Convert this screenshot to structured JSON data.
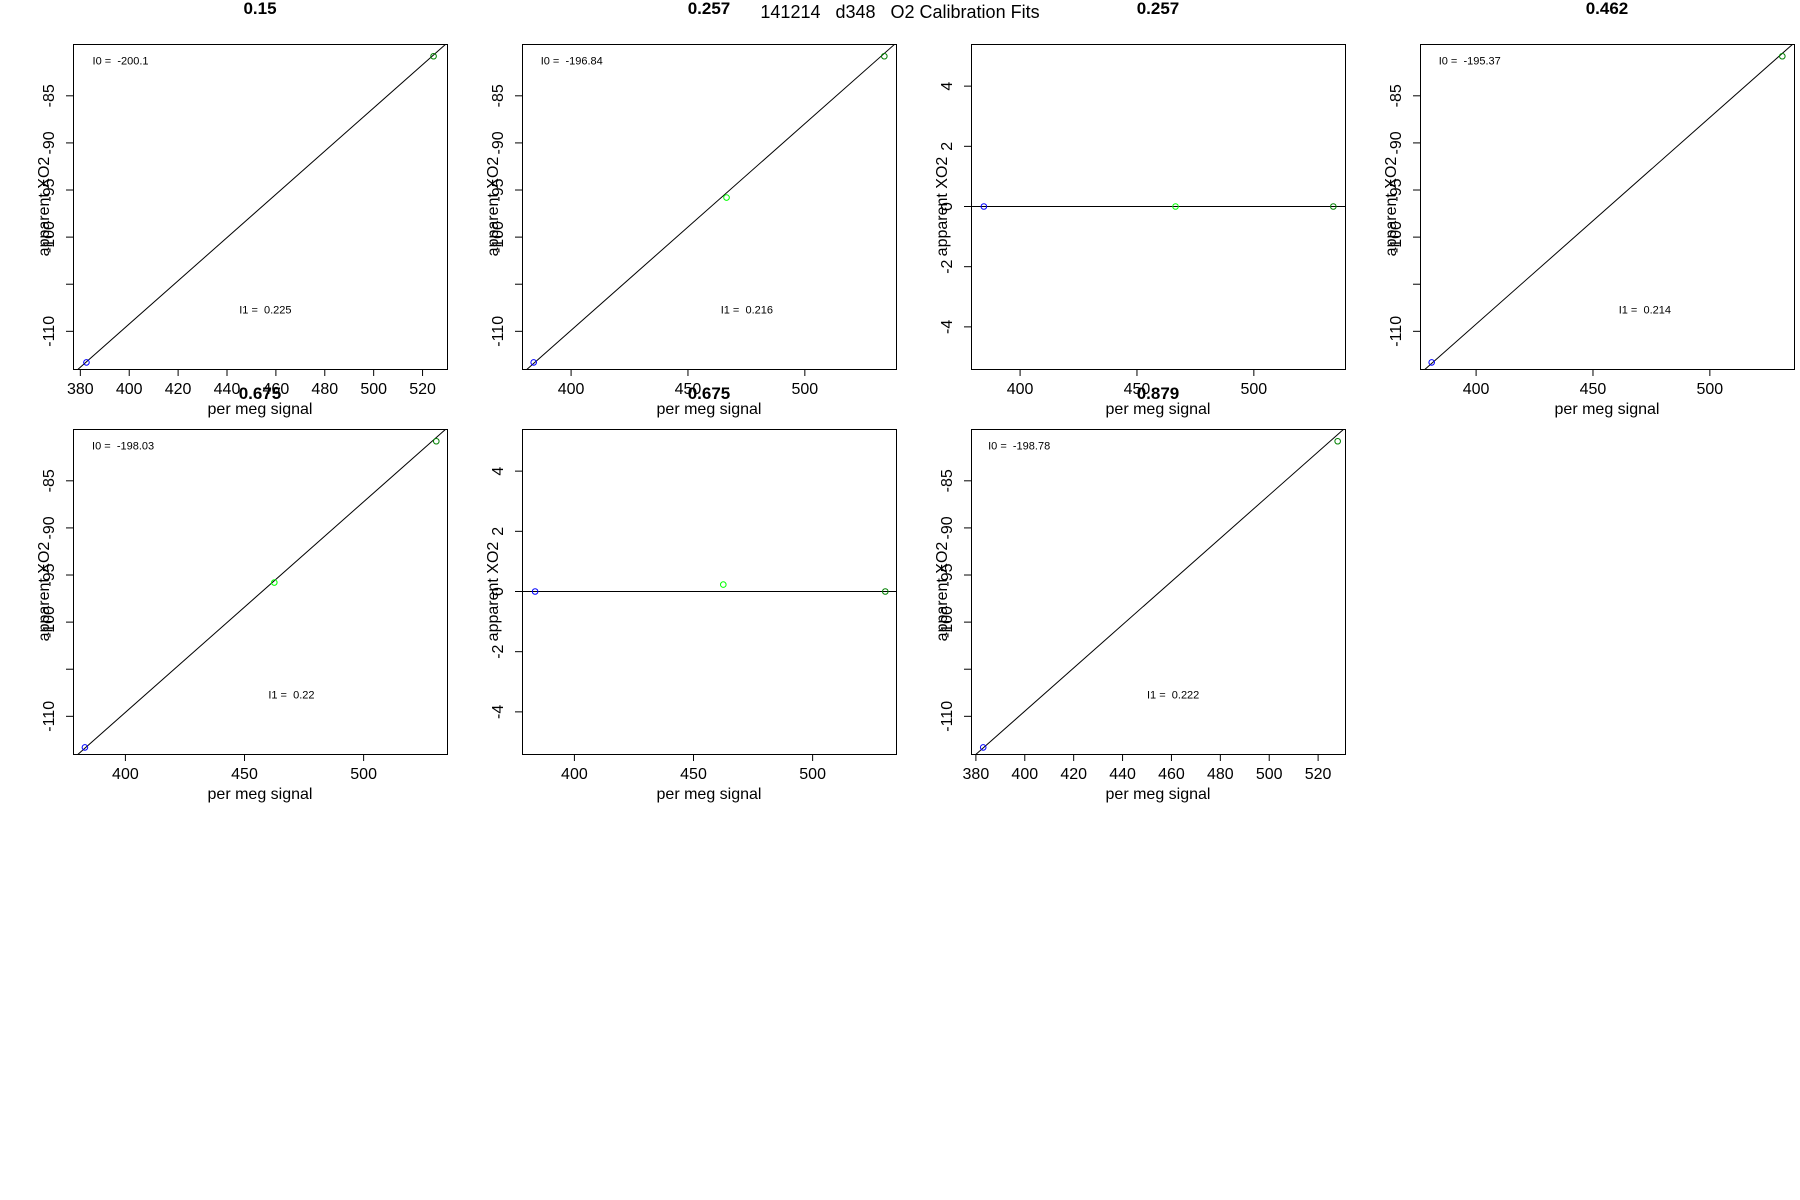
{
  "title": "141214   d348   O2 Calibration Fits",
  "colors": {
    "axis": "#000000",
    "low": "#0000ff",
    "mid": "#00ff00",
    "high": "#008000"
  },
  "chart_data": [
    {
      "type": "scatter",
      "title": "0.15",
      "xlabel": "per meg signal",
      "ylabel": "apparent XO2",
      "xlim": [
        377,
        530
      ],
      "ylim": [
        -114,
        -79.5
      ],
      "xticks": [
        380,
        400,
        420,
        440,
        460,
        480,
        500,
        520
      ],
      "yticks": [
        -85,
        -90,
        -95,
        -100,
        -105,
        -110
      ],
      "ytick_labels": [
        "-85",
        "-90",
        "-95",
        "-100",
        "",
        "-110"
      ],
      "points": [
        {
          "x": 382.5,
          "y": -113.3,
          "color": "low"
        },
        {
          "x": 524.5,
          "y": -80.8,
          "color": "high"
        }
      ],
      "fit": {
        "from": [
          377,
          -114.5
        ],
        "to": [
          530,
          -79.4
        ]
      },
      "annotations": [
        {
          "text": "I0 =  -200.1",
          "x": 385,
          "y": -81.7
        },
        {
          "text": "I1 =  0.225",
          "x": 445,
          "y": -108.1
        }
      ]
    },
    {
      "type": "scatter",
      "title": "0.257",
      "xlabel": "per meg signal",
      "ylabel": "apparent XO2",
      "xlim": [
        379,
        539
      ],
      "ylim": [
        -114,
        -79.5
      ],
      "xticks": [
        400,
        450,
        500
      ],
      "yticks": [
        -85,
        -90,
        -95,
        -100,
        -105,
        -110
      ],
      "ytick_labels": [
        "-85",
        "-90",
        "-95",
        "-100",
        "",
        "-110"
      ],
      "points": [
        {
          "x": 384,
          "y": -113.3,
          "color": "low"
        },
        {
          "x": 466.5,
          "y": -95.8,
          "color": "mid"
        },
        {
          "x": 534,
          "y": -80.8,
          "color": "high"
        }
      ],
      "fit": {
        "from": [
          379,
          -114.5
        ],
        "to": [
          539,
          -79.4
        ]
      },
      "annotations": [
        {
          "text": "I0 =  -196.84",
          "x": 387,
          "y": -81.7
        },
        {
          "text": "I1 =  0.216",
          "x": 464,
          "y": -108.1
        }
      ]
    },
    {
      "type": "scatter",
      "title": "0.257",
      "xlabel": "per meg signal",
      "ylabel": "apparent XO2",
      "xlim": [
        379,
        539
      ],
      "ylim": [
        -5.4,
        5.4
      ],
      "xticks": [
        400,
        450,
        500
      ],
      "yticks": [
        4,
        2,
        0,
        -2,
        -4
      ],
      "ytick_labels": [
        "4",
        "2",
        "0",
        "-2",
        "-4"
      ],
      "points": [
        {
          "x": 384.5,
          "y": 0,
          "color": "low"
        },
        {
          "x": 466.5,
          "y": 0,
          "color": "mid"
        },
        {
          "x": 534,
          "y": 0,
          "color": "high"
        }
      ],
      "fit": {
        "from": [
          379,
          0
        ],
        "to": [
          539,
          0
        ]
      },
      "annotations": []
    },
    {
      "type": "scatter",
      "title": "0.462",
      "xlabel": "per meg signal",
      "ylabel": "apparent XO2",
      "xlim": [
        376,
        536
      ],
      "ylim": [
        -114,
        -79.5
      ],
      "xticks": [
        400,
        450,
        500
      ],
      "yticks": [
        -85,
        -90,
        -95,
        -100,
        -105,
        -110
      ],
      "ytick_labels": [
        "-85",
        "-90",
        "-95",
        "-100",
        "",
        "-110"
      ],
      "points": [
        {
          "x": 381,
          "y": -113.3,
          "color": "low"
        },
        {
          "x": 531,
          "y": -80.8,
          "color": "high"
        }
      ],
      "fit": {
        "from": [
          376,
          -114.5
        ],
        "to": [
          536,
          -79.4
        ]
      },
      "annotations": [
        {
          "text": "I0 =  -195.37",
          "x": 384,
          "y": -81.7
        },
        {
          "text": "I1 =  0.214",
          "x": 461,
          "y": -108.1
        }
      ]
    },
    {
      "type": "scatter",
      "title": "0.675",
      "xlabel": "per meg signal",
      "ylabel": "apparent XO2",
      "xlim": [
        378,
        535
      ],
      "ylim": [
        -114,
        -79.5
      ],
      "xticks": [
        400,
        450,
        500
      ],
      "yticks": [
        -85,
        -90,
        -95,
        -100,
        -105,
        -110
      ],
      "ytick_labels": [
        "-85",
        "-90",
        "-95",
        "-100",
        "",
        "-110"
      ],
      "points": [
        {
          "x": 383,
          "y": -113.3,
          "color": "low"
        },
        {
          "x": 462.5,
          "y": -95.8,
          "color": "mid"
        },
        {
          "x": 530.5,
          "y": -80.8,
          "color": "high"
        }
      ],
      "fit": {
        "from": [
          378,
          -114.5
        ],
        "to": [
          535,
          -79.4
        ]
      },
      "annotations": [
        {
          "text": "I0 =  -198.03",
          "x": 386,
          "y": -81.7
        },
        {
          "text": "I1 =  0.22",
          "x": 460,
          "y": -108.1
        }
      ]
    },
    {
      "type": "scatter",
      "title": "0.675",
      "xlabel": "per meg signal",
      "ylabel": "apparent XO2",
      "xlim": [
        378,
        535
      ],
      "ylim": [
        -5.4,
        5.4
      ],
      "xticks": [
        400,
        450,
        500
      ],
      "yticks": [
        4,
        2,
        0,
        -2,
        -4
      ],
      "ytick_labels": [
        "4",
        "2",
        "0",
        "-2",
        "-4"
      ],
      "points": [
        {
          "x": 383.5,
          "y": 0,
          "color": "low"
        },
        {
          "x": 462.5,
          "y": 0.23,
          "color": "mid"
        },
        {
          "x": 530.5,
          "y": 0,
          "color": "high"
        }
      ],
      "fit": {
        "from": [
          378,
          0
        ],
        "to": [
          535,
          0
        ]
      },
      "annotations": []
    },
    {
      "type": "scatter",
      "title": "0.879",
      "xlabel": "per meg signal",
      "ylabel": "apparent XO2",
      "xlim": [
        378,
        531
      ],
      "ylim": [
        -114,
        -79.5
      ],
      "xticks": [
        380,
        400,
        420,
        440,
        460,
        480,
        500,
        520
      ],
      "yticks": [
        -85,
        -90,
        -95,
        -100,
        -105,
        -110
      ],
      "ytick_labels": [
        "-85",
        "-90",
        "-95",
        "-100",
        "",
        "-110"
      ],
      "points": [
        {
          "x": 383,
          "y": -113.3,
          "color": "low"
        },
        {
          "x": 528,
          "y": -80.8,
          "color": "high"
        }
      ],
      "fit": {
        "from": [
          378,
          -114.5
        ],
        "to": [
          531,
          -79.4
        ]
      },
      "annotations": [
        {
          "text": "I0 =  -198.78",
          "x": 385,
          "y": -81.7
        },
        {
          "text": "I1 =  0.222",
          "x": 450,
          "y": -108.1
        }
      ]
    }
  ]
}
